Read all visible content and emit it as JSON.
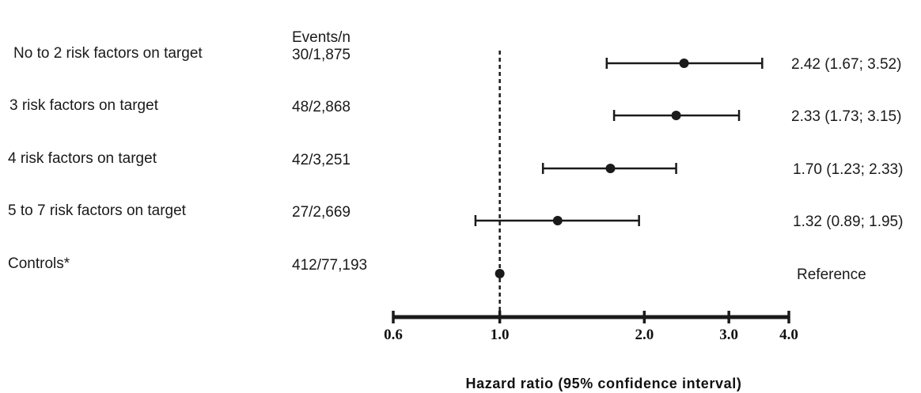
{
  "chart_data": {
    "type": "forest",
    "column_header": "Events/n",
    "xlabel": "Hazard ratio (95% confidence interval)",
    "x_scale": "log",
    "xlim": [
      0.6,
      4.0
    ],
    "x_ticks": [
      0.6,
      1.0,
      2.0,
      3.0,
      4.0
    ],
    "x_tick_labels": [
      "0.6",
      "1.0",
      "2.0",
      "3.0",
      "4.0"
    ],
    "reference_line": 1.0,
    "rows": [
      {
        "label": "No to 2 risk factors on target",
        "events": "30/1,875",
        "hr": 2.42,
        "lo": 1.67,
        "hi": 3.52,
        "text": "2.42 (1.67; 3.52)"
      },
      {
        "label": "3 risk factors on target",
        "events": "48/2,868",
        "hr": 2.33,
        "lo": 1.73,
        "hi": 3.15,
        "text": "2.33 (1.73; 3.15)"
      },
      {
        "label": "4 risk factors on target",
        "events": "42/3,251",
        "hr": 1.7,
        "lo": 1.23,
        "hi": 2.33,
        "text": "1.70 (1.23; 2.33)"
      },
      {
        "label": "5 to 7 risk factors on target",
        "events": "27/2,669",
        "hr": 1.32,
        "lo": 0.89,
        "hi": 1.95,
        "text": "1.32 (0.89; 1.95)"
      },
      {
        "label": "Controls*",
        "events": "412/77,193",
        "hr": 1.0,
        "lo": null,
        "hi": null,
        "text": "Reference"
      }
    ],
    "colors": {
      "marks": "#1a1a1a",
      "text": "#1a1a1a"
    }
  }
}
